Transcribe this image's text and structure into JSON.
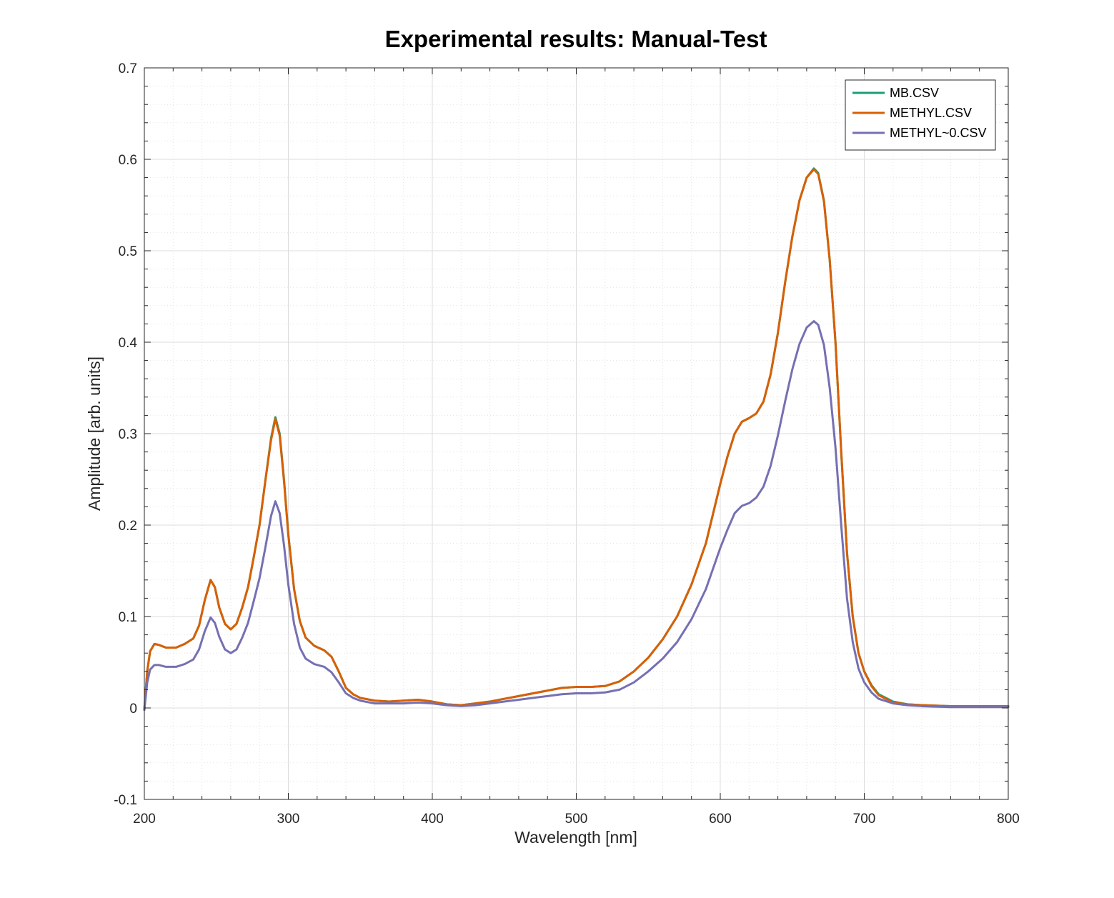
{
  "chart_data": {
    "type": "line",
    "title": "Experimental results: Manual-Test",
    "xlabel": "Wavelength [nm]",
    "ylabel": "Amplitude [arb. units]",
    "xlim": [
      200,
      800
    ],
    "ylim": [
      -0.1,
      0.7
    ],
    "xticks": [
      200,
      300,
      400,
      500,
      600,
      700,
      800
    ],
    "yticks": [
      -0.1,
      0,
      0.1,
      0.2,
      0.3,
      0.4,
      0.5,
      0.6,
      0.7
    ],
    "xtick_labels": [
      "200",
      "300",
      "400",
      "500",
      "600",
      "700",
      "800"
    ],
    "ytick_labels": [
      "-0.1",
      "0",
      "0.1",
      "0.2",
      "0.3",
      "0.4",
      "0.5",
      "0.6",
      "0.7"
    ],
    "grid": true,
    "legend_position": "top-right",
    "series": [
      {
        "name": "MB.CSV",
        "color": "#1b9e77",
        "points": [
          [
            200,
            -0.002
          ],
          [
            202,
            0.04
          ],
          [
            204,
            0.062
          ],
          [
            207,
            0.07
          ],
          [
            210,
            0.069
          ],
          [
            215,
            0.066
          ],
          [
            222,
            0.066
          ],
          [
            228,
            0.07
          ],
          [
            234,
            0.076
          ],
          [
            238,
            0.09
          ],
          [
            242,
            0.118
          ],
          [
            246,
            0.14
          ],
          [
            249,
            0.132
          ],
          [
            252,
            0.11
          ],
          [
            256,
            0.092
          ],
          [
            260,
            0.086
          ],
          [
            264,
            0.092
          ],
          [
            268,
            0.11
          ],
          [
            272,
            0.132
          ],
          [
            276,
            0.165
          ],
          [
            280,
            0.2
          ],
          [
            284,
            0.248
          ],
          [
            288,
            0.295
          ],
          [
            291,
            0.318
          ],
          [
            294,
            0.3
          ],
          [
            297,
            0.25
          ],
          [
            300,
            0.19
          ],
          [
            304,
            0.13
          ],
          [
            308,
            0.095
          ],
          [
            312,
            0.077
          ],
          [
            318,
            0.068
          ],
          [
            325,
            0.063
          ],
          [
            330,
            0.056
          ],
          [
            335,
            0.04
          ],
          [
            340,
            0.022
          ],
          [
            345,
            0.015
          ],
          [
            350,
            0.011
          ],
          [
            360,
            0.008
          ],
          [
            370,
            0.007
          ],
          [
            380,
            0.008
          ],
          [
            390,
            0.009
          ],
          [
            400,
            0.007
          ],
          [
            410,
            0.004
          ],
          [
            420,
            0.003
          ],
          [
            430,
            0.005
          ],
          [
            440,
            0.007
          ],
          [
            450,
            0.01
          ],
          [
            460,
            0.013
          ],
          [
            470,
            0.016
          ],
          [
            480,
            0.019
          ],
          [
            490,
            0.022
          ],
          [
            500,
            0.023
          ],
          [
            510,
            0.023
          ],
          [
            520,
            0.024
          ],
          [
            530,
            0.029
          ],
          [
            540,
            0.04
          ],
          [
            550,
            0.055
          ],
          [
            560,
            0.075
          ],
          [
            570,
            0.1
          ],
          [
            580,
            0.135
          ],
          [
            590,
            0.18
          ],
          [
            600,
            0.245
          ],
          [
            605,
            0.275
          ],
          [
            610,
            0.3
          ],
          [
            615,
            0.313
          ],
          [
            620,
            0.317
          ],
          [
            625,
            0.322
          ],
          [
            630,
            0.335
          ],
          [
            635,
            0.365
          ],
          [
            640,
            0.41
          ],
          [
            645,
            0.465
          ],
          [
            650,
            0.515
          ],
          [
            655,
            0.555
          ],
          [
            660,
            0.58
          ],
          [
            665,
            0.59
          ],
          [
            668,
            0.585
          ],
          [
            672,
            0.555
          ],
          [
            676,
            0.49
          ],
          [
            680,
            0.4
          ],
          [
            684,
            0.28
          ],
          [
            688,
            0.17
          ],
          [
            692,
            0.1
          ],
          [
            696,
            0.06
          ],
          [
            700,
            0.04
          ],
          [
            705,
            0.025
          ],
          [
            710,
            0.015
          ],
          [
            720,
            0.007
          ],
          [
            730,
            0.004
          ],
          [
            740,
            0.003
          ],
          [
            760,
            0.002
          ],
          [
            780,
            0.002
          ],
          [
            800,
            0.002
          ]
        ]
      },
      {
        "name": "METHYL.CSV",
        "color": "#d95f02",
        "points": [
          [
            200,
            -0.002
          ],
          [
            202,
            0.04
          ],
          [
            204,
            0.062
          ],
          [
            207,
            0.07
          ],
          [
            210,
            0.069
          ],
          [
            215,
            0.066
          ],
          [
            222,
            0.066
          ],
          [
            228,
            0.07
          ],
          [
            234,
            0.076
          ],
          [
            238,
            0.09
          ],
          [
            242,
            0.118
          ],
          [
            246,
            0.14
          ],
          [
            249,
            0.132
          ],
          [
            252,
            0.11
          ],
          [
            256,
            0.092
          ],
          [
            260,
            0.086
          ],
          [
            264,
            0.092
          ],
          [
            268,
            0.11
          ],
          [
            272,
            0.132
          ],
          [
            276,
            0.165
          ],
          [
            280,
            0.2
          ],
          [
            284,
            0.248
          ],
          [
            288,
            0.293
          ],
          [
            291,
            0.316
          ],
          [
            294,
            0.298
          ],
          [
            297,
            0.248
          ],
          [
            300,
            0.189
          ],
          [
            304,
            0.13
          ],
          [
            308,
            0.095
          ],
          [
            312,
            0.077
          ],
          [
            318,
            0.068
          ],
          [
            325,
            0.063
          ],
          [
            330,
            0.056
          ],
          [
            335,
            0.04
          ],
          [
            340,
            0.022
          ],
          [
            345,
            0.015
          ],
          [
            350,
            0.011
          ],
          [
            360,
            0.008
          ],
          [
            370,
            0.007
          ],
          [
            380,
            0.008
          ],
          [
            390,
            0.009
          ],
          [
            400,
            0.007
          ],
          [
            410,
            0.004
          ],
          [
            420,
            0.003
          ],
          [
            430,
            0.005
          ],
          [
            440,
            0.007
          ],
          [
            450,
            0.01
          ],
          [
            460,
            0.013
          ],
          [
            470,
            0.016
          ],
          [
            480,
            0.019
          ],
          [
            490,
            0.022
          ],
          [
            500,
            0.023
          ],
          [
            510,
            0.023
          ],
          [
            520,
            0.024
          ],
          [
            530,
            0.029
          ],
          [
            540,
            0.04
          ],
          [
            550,
            0.055
          ],
          [
            560,
            0.075
          ],
          [
            570,
            0.1
          ],
          [
            580,
            0.135
          ],
          [
            590,
            0.18
          ],
          [
            600,
            0.245
          ],
          [
            605,
            0.275
          ],
          [
            610,
            0.3
          ],
          [
            615,
            0.313
          ],
          [
            620,
            0.317
          ],
          [
            625,
            0.322
          ],
          [
            630,
            0.335
          ],
          [
            635,
            0.365
          ],
          [
            640,
            0.41
          ],
          [
            645,
            0.465
          ],
          [
            650,
            0.515
          ],
          [
            655,
            0.555
          ],
          [
            660,
            0.58
          ],
          [
            665,
            0.589
          ],
          [
            668,
            0.584
          ],
          [
            672,
            0.554
          ],
          [
            676,
            0.49
          ],
          [
            680,
            0.4
          ],
          [
            684,
            0.28
          ],
          [
            688,
            0.17
          ],
          [
            692,
            0.1
          ],
          [
            696,
            0.06
          ],
          [
            700,
            0.04
          ],
          [
            705,
            0.024
          ],
          [
            710,
            0.014
          ],
          [
            720,
            0.006
          ],
          [
            730,
            0.004
          ],
          [
            740,
            0.003
          ],
          [
            760,
            0.002
          ],
          [
            780,
            0.002
          ],
          [
            800,
            0.002
          ]
        ]
      },
      {
        "name": "METHYL~0.CSV",
        "color": "#7570b3",
        "points": [
          [
            200,
            -0.002
          ],
          [
            202,
            0.028
          ],
          [
            204,
            0.042
          ],
          [
            207,
            0.047
          ],
          [
            210,
            0.047
          ],
          [
            215,
            0.045
          ],
          [
            222,
            0.045
          ],
          [
            228,
            0.048
          ],
          [
            234,
            0.053
          ],
          [
            238,
            0.064
          ],
          [
            242,
            0.084
          ],
          [
            246,
            0.099
          ],
          [
            249,
            0.093
          ],
          [
            252,
            0.078
          ],
          [
            256,
            0.064
          ],
          [
            260,
            0.06
          ],
          [
            264,
            0.064
          ],
          [
            268,
            0.077
          ],
          [
            272,
            0.093
          ],
          [
            276,
            0.117
          ],
          [
            280,
            0.142
          ],
          [
            284,
            0.175
          ],
          [
            288,
            0.21
          ],
          [
            291,
            0.226
          ],
          [
            294,
            0.213
          ],
          [
            297,
            0.178
          ],
          [
            300,
            0.135
          ],
          [
            304,
            0.092
          ],
          [
            308,
            0.066
          ],
          [
            312,
            0.054
          ],
          [
            318,
            0.048
          ],
          [
            325,
            0.045
          ],
          [
            330,
            0.039
          ],
          [
            335,
            0.028
          ],
          [
            340,
            0.016
          ],
          [
            345,
            0.011
          ],
          [
            350,
            0.008
          ],
          [
            360,
            0.005
          ],
          [
            370,
            0.005
          ],
          [
            380,
            0.005
          ],
          [
            390,
            0.006
          ],
          [
            400,
            0.005
          ],
          [
            410,
            0.003
          ],
          [
            420,
            0.002
          ],
          [
            430,
            0.003
          ],
          [
            440,
            0.005
          ],
          [
            450,
            0.007
          ],
          [
            460,
            0.009
          ],
          [
            470,
            0.011
          ],
          [
            480,
            0.013
          ],
          [
            490,
            0.015
          ],
          [
            500,
            0.016
          ],
          [
            510,
            0.016
          ],
          [
            520,
            0.017
          ],
          [
            530,
            0.02
          ],
          [
            540,
            0.028
          ],
          [
            550,
            0.04
          ],
          [
            560,
            0.054
          ],
          [
            570,
            0.072
          ],
          [
            580,
            0.097
          ],
          [
            590,
            0.13
          ],
          [
            600,
            0.175
          ],
          [
            605,
            0.195
          ],
          [
            610,
            0.213
          ],
          [
            615,
            0.221
          ],
          [
            620,
            0.224
          ],
          [
            625,
            0.23
          ],
          [
            630,
            0.242
          ],
          [
            635,
            0.265
          ],
          [
            640,
            0.298
          ],
          [
            645,
            0.335
          ],
          [
            650,
            0.37
          ],
          [
            655,
            0.398
          ],
          [
            660,
            0.416
          ],
          [
            665,
            0.423
          ],
          [
            668,
            0.419
          ],
          [
            672,
            0.397
          ],
          [
            676,
            0.35
          ],
          [
            680,
            0.285
          ],
          [
            684,
            0.2
          ],
          [
            688,
            0.12
          ],
          [
            692,
            0.072
          ],
          [
            696,
            0.043
          ],
          [
            700,
            0.028
          ],
          [
            705,
            0.017
          ],
          [
            710,
            0.01
          ],
          [
            720,
            0.005
          ],
          [
            730,
            0.003
          ],
          [
            740,
            0.002
          ],
          [
            760,
            0.001
          ],
          [
            780,
            0.001
          ],
          [
            800,
            0.001
          ]
        ]
      }
    ]
  }
}
